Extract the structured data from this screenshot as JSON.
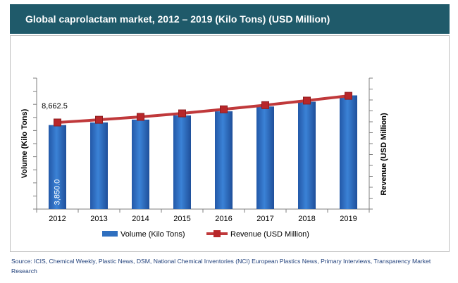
{
  "header": {
    "title": "Global caprolactam market, 2012 – 2019 (Kilo Tons) (USD Million)"
  },
  "colors": {
    "header_bg": "#1f5a6a",
    "bar": "#2f6fbf",
    "line": "#c0393b",
    "source_text": "#1f3f7a"
  },
  "chart_data": {
    "type": "bar",
    "categories": [
      "2012",
      "2013",
      "2014",
      "2015",
      "2016",
      "2017",
      "2018",
      "2019"
    ],
    "series": [
      {
        "name": "Volume (Kilo Tons)",
        "type": "bar",
        "axis": "left",
        "values": [
          3850.0,
          3970,
          4100,
          4290,
          4480,
          4700,
          4920,
          5210
        ]
      },
      {
        "name": "Revenue (USD Million)",
        "type": "line",
        "axis": "right",
        "values": [
          8662.5,
          9320,
          10020,
          10870,
          11850,
          12860,
          13960,
          15120
        ]
      }
    ],
    "ylabel": "Volume (Kilo Tons)",
    "y2label": "Revenue (USD Million)",
    "ylim": [
      0,
      6000
    ],
    "y2lim": [
      -12300,
      19400
    ],
    "y_tick_count": 10,
    "y2_tick_count": 12,
    "y_tick_labels_shown": false,
    "y2_tick_labels_shown": false,
    "data_labels": {
      "volume_2012": "3,850.0",
      "revenue_2012": "8,662.5"
    },
    "legend_position": "bottom",
    "grid": false
  },
  "source": {
    "text": "Source: ICIS, Chemical Weekly, Plastic News, DSM, National Chemical Inventories (NCI) European Plastics News, Primary Interviews, Transparency Market Research"
  }
}
